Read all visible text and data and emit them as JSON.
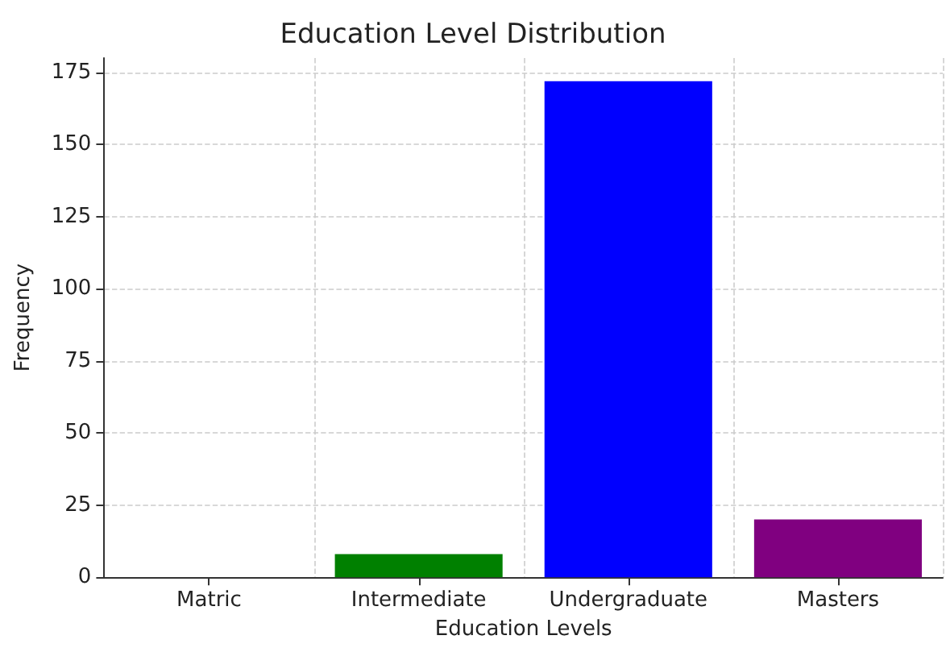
{
  "chart_data": {
    "type": "bar",
    "title": "Education Level Distribution",
    "xlabel": "Education Levels",
    "ylabel": "Frequency",
    "categories": [
      "Matric",
      "Intermediate",
      "Undergraduate",
      "Masters"
    ],
    "values": [
      0,
      8,
      172,
      20
    ],
    "colors": [
      "#ff0000",
      "#008000",
      "#0000ff",
      "#800080"
    ],
    "ylim": [
      0,
      180
    ],
    "yticks": [
      0,
      25,
      50,
      75,
      100,
      125,
      150,
      175
    ],
    "grid": true
  }
}
